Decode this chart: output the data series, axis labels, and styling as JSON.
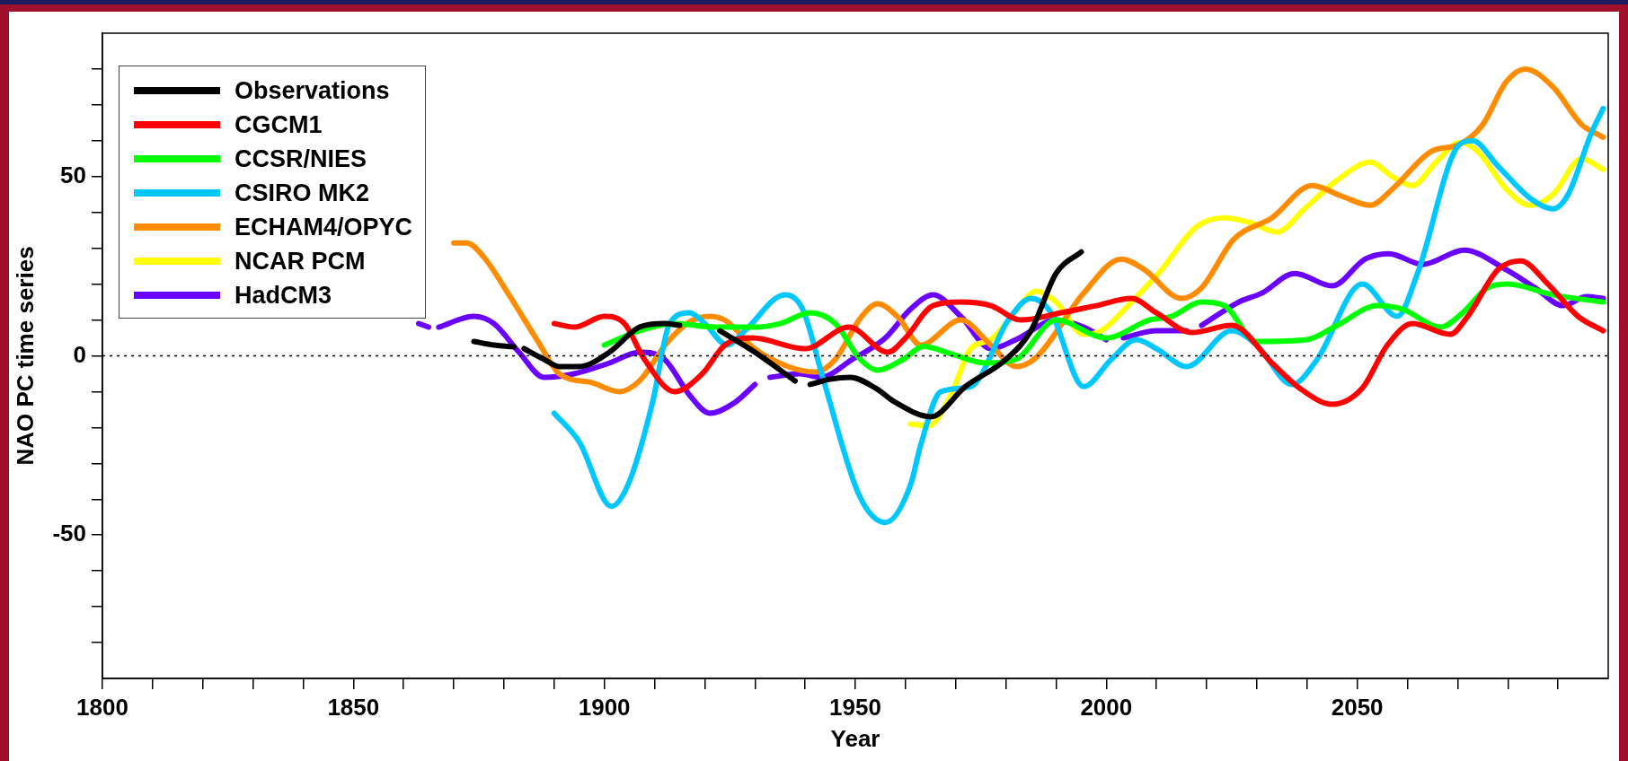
{
  "chart_data": {
    "type": "line",
    "xlabel": "Year",
    "ylabel": "NAO PC time series",
    "xlim": [
      1800,
      2100
    ],
    "ylim": [
      -90,
      90
    ],
    "xticks": [
      1800,
      {
        "value": 1810,
        "label": null
      },
      {
        "value": 1820,
        "label": null
      },
      {
        "value": 1830,
        "label": null
      },
      {
        "value": 1840,
        "label": null
      },
      1850,
      {
        "value": 1860,
        "label": null
      },
      {
        "value": 1870,
        "label": null
      },
      {
        "value": 1880,
        "label": null
      },
      {
        "value": 1890,
        "label": null
      },
      1900,
      {
        "value": 1910,
        "label": null
      },
      {
        "value": 1920,
        "label": null
      },
      {
        "value": 1930,
        "label": null
      },
      {
        "value": 1940,
        "label": null
      },
      1950,
      {
        "value": 1960,
        "label": null
      },
      {
        "value": 1970,
        "label": null
      },
      {
        "value": 1980,
        "label": null
      },
      {
        "value": 1990,
        "label": null
      },
      2000,
      {
        "value": 2010,
        "label": null
      },
      {
        "value": 2020,
        "label": null
      },
      {
        "value": 2030,
        "label": null
      },
      {
        "value": 2040,
        "label": null
      },
      2050,
      {
        "value": 2060,
        "label": null
      },
      {
        "value": 2070,
        "label": null
      },
      {
        "value": 2080,
        "label": null
      },
      {
        "value": 2090,
        "label": null
      }
    ],
    "yticks": [
      {
        "value": -80,
        "label": null
      },
      {
        "value": -70,
        "label": null
      },
      {
        "value": -60,
        "label": null
      },
      -50,
      {
        "value": -40,
        "label": null
      },
      {
        "value": -30,
        "label": null
      },
      {
        "value": -20,
        "label": null
      },
      {
        "value": -10,
        "label": null
      },
      0,
      {
        "value": 10,
        "label": null
      },
      {
        "value": 20,
        "label": null
      },
      {
        "value": 30,
        "label": null
      },
      {
        "value": 40,
        "label": null
      },
      50,
      {
        "value": 60,
        "label": null
      },
      {
        "value": 70,
        "label": null
      },
      {
        "value": 80,
        "label": null
      }
    ],
    "legend": "top left",
    "marker": "none",
    "line_style": "solid",
    "ref_lines": [
      {
        "axis": "y",
        "value": 0,
        "line_style": "dotted",
        "color": "#000000"
      }
    ],
    "series": [
      {
        "name": "Observations",
        "color": "#000000",
        "x": [
          1874,
          1878,
          1882,
          1883,
          1884,
          1888,
          1891,
          1895,
          1901,
          1907,
          1912,
          1915,
          1919,
          1923,
          1930,
          1938,
          1939.5,
          1941,
          1945,
          1949,
          1954,
          1958,
          1965,
          1972,
          1980,
          1985,
          1990,
          1995
        ],
        "values": [
          4,
          3,
          2.5,
          null,
          2,
          -1,
          -3,
          -3,
          1,
          8,
          9,
          8.5,
          null,
          7,
          1,
          -7,
          null,
          -8,
          -6.5,
          -6,
          -9,
          -13,
          -17,
          -8.5,
          -1,
          7,
          23,
          29
        ]
      },
      {
        "name": "CGCM1",
        "color": "#ff0000",
        "x": [
          1890,
          1894,
          1900,
          1904,
          1908,
          1914,
          1919.5,
          1924,
          1929.5,
          1940,
          1948.7,
          1956.5,
          1960,
          1965.5,
          1971,
          1977,
          1983,
          1991,
          1998,
          2005,
          2010,
          2017,
          2025,
          2033,
          2038.5,
          2045,
          2051,
          2056,
          2061,
          2068.5,
          2072,
          2078,
          2082.5,
          2088,
          2094,
          2099
        ],
        "values": [
          9,
          8,
          11,
          9,
          -1,
          -10,
          -5,
          3,
          5,
          2,
          8,
          1,
          5,
          14,
          15,
          14,
          10,
          12,
          14,
          16,
          12,
          6.5,
          8.5,
          -2,
          -9,
          -13.5,
          -9,
          3,
          9,
          6,
          11,
          24,
          26.5,
          20,
          11,
          7
        ]
      },
      {
        "name": "CCSR/NIES",
        "color": "#00ff00",
        "x": [
          1900,
          1907,
          1914,
          1922,
          1930,
          1935,
          1941,
          1946,
          1951,
          1954.5,
          1959.5,
          1963.6,
          1969,
          1976,
          1982,
          1990,
          2000,
          2008.6,
          2013,
          2019,
          2023.5,
          2030,
          2040,
          2046,
          2054,
          2059,
          2066.6,
          2071,
          2076,
          2080,
          2089,
          2099
        ],
        "values": [
          3,
          7,
          9,
          8,
          8,
          9,
          12,
          9,
          -1,
          -4,
          -1,
          2.6,
          0.6,
          -2,
          -1,
          10,
          5,
          10,
          11,
          15,
          14,
          4,
          4.5,
          8.5,
          14,
          13,
          8,
          12,
          19,
          20,
          17,
          15
        ]
      },
      {
        "name": "CSIRO MK2",
        "color": "#00c8ff",
        "x": [
          1890,
          1895,
          1901.4,
          1905,
          1909.6,
          1913,
          1917,
          1920,
          1924.5,
          1928,
          1936,
          1939.5,
          1943.7,
          1950.8,
          1956,
          1961,
          1963,
          1967,
          1973,
          1980.5,
          1985,
          1989,
          1995.5,
          2001,
          2006,
          2010,
          2016,
          2025,
          2030,
          2037,
          2042,
          2051,
          2058,
          2062,
          2070.4,
          2073,
          2078,
          2084.4,
          2089,
          2092,
          2096.6,
          2099
        ],
        "values": [
          -16,
          -24,
          -42,
          -35,
          -13,
          9,
          12,
          9,
          3,
          7,
          17,
          13,
          -7,
          -39,
          -46.5,
          -36,
          -25,
          -10,
          -8.6,
          10,
          16,
          12,
          -8.6,
          -1,
          4.5,
          2,
          -3,
          7,
          3,
          -8,
          -1,
          20,
          11,
          23,
          59,
          60,
          53,
          44,
          41,
          45,
          62,
          69
        ]
      },
      {
        "name": "ECHAM4/OPYC",
        "color": "#ff8c00",
        "x": [
          1870,
          1872.6,
          1876,
          1881,
          1887,
          1891,
          1897.5,
          1903,
          1907,
          1912.4,
          1917,
          1921,
          1924.5,
          1929.5,
          1936.6,
          1942,
          1946,
          1951,
          1954.4,
          1958.7,
          1963,
          1971,
          1977,
          1982,
          1986,
          1995.5,
          2003,
          2007.6,
          2015,
          2019,
          2025.4,
          2033,
          2041,
          2047,
          2052.6,
          2057,
          2064.7,
          2070.4,
          2075,
          2079.7,
          2083.5,
          2089,
          2094.7,
          2099
        ],
        "values": [
          31.5,
          31.5,
          27.5,
          17,
          3.5,
          -5,
          -7.5,
          -10,
          -7,
          3.5,
          9.5,
          11,
          9.5,
          2.5,
          -3,
          -4.5,
          -1,
          10.5,
          14.5,
          10.5,
          3,
          10,
          3,
          -3,
          -0.5,
          17.5,
          27,
          24,
          16,
          19,
          32.5,
          38.5,
          47.5,
          44.5,
          42,
          46.5,
          57,
          59,
          64.5,
          76.5,
          80,
          75,
          64.5,
          61
        ]
      },
      {
        "name": "NCAR PCM",
        "color": "#ffff00",
        "x": [
          1961,
          1964.6,
          1969,
          1973,
          1977,
          1982,
          1986,
          1990,
          1995.5,
          1999,
          2005,
          2010.4,
          2018,
          2023.5,
          2029,
          2034,
          2039.5,
          2046,
          2052.6,
          2057,
          2061,
          2065.7,
          2070.4,
          2074,
          2079.7,
          2084.4,
          2089,
          2094.7,
          2099
        ],
        "values": [
          -19,
          -19.5,
          -11,
          2,
          4.5,
          12.5,
          18,
          15,
          6,
          7,
          15,
          23,
          36,
          38.5,
          37,
          34.5,
          41,
          49,
          54,
          50,
          47.5,
          54,
          59.5,
          57,
          46.5,
          42,
          45,
          55,
          52
        ]
      },
      {
        "name": "HadCM3",
        "color": "#6a00ff",
        "x": [
          1863,
          1865,
          1866,
          1867,
          1874,
          1878,
          1883,
          1888,
          1894,
          1901,
          1907,
          1912,
          1917,
          1921,
          1926,
          1930,
          1931.5,
          1933,
          1939,
          1943,
          1949.4,
          1956,
          1961,
          1965.5,
          1971,
          1977,
          1982,
          1990,
          1995.5,
          2000,
          2001.5,
          2003.4,
          2010,
          2016,
          2017.5,
          2019,
          2026.4,
          2031,
          2037.6,
          2045,
          2051.6,
          2056.3,
          2063,
          2071.3,
          2079.7,
          2085.4,
          2091,
          2095.7,
          2099
        ],
        "values": [
          9,
          8,
          null,
          8,
          11,
          9,
          1,
          -6,
          -5,
          -2,
          1,
          -1,
          -11,
          -16,
          -13,
          -8,
          null,
          -6,
          -5,
          -6,
          -1,
          5,
          13,
          17,
          11,
          2,
          4.5,
          10,
          8,
          4.5,
          null,
          5,
          7,
          7,
          null,
          8.5,
          15,
          17.5,
          23,
          19.5,
          27,
          28.5,
          25.5,
          29.5,
          24,
          19,
          14,
          16.5,
          16
        ]
      }
    ]
  }
}
